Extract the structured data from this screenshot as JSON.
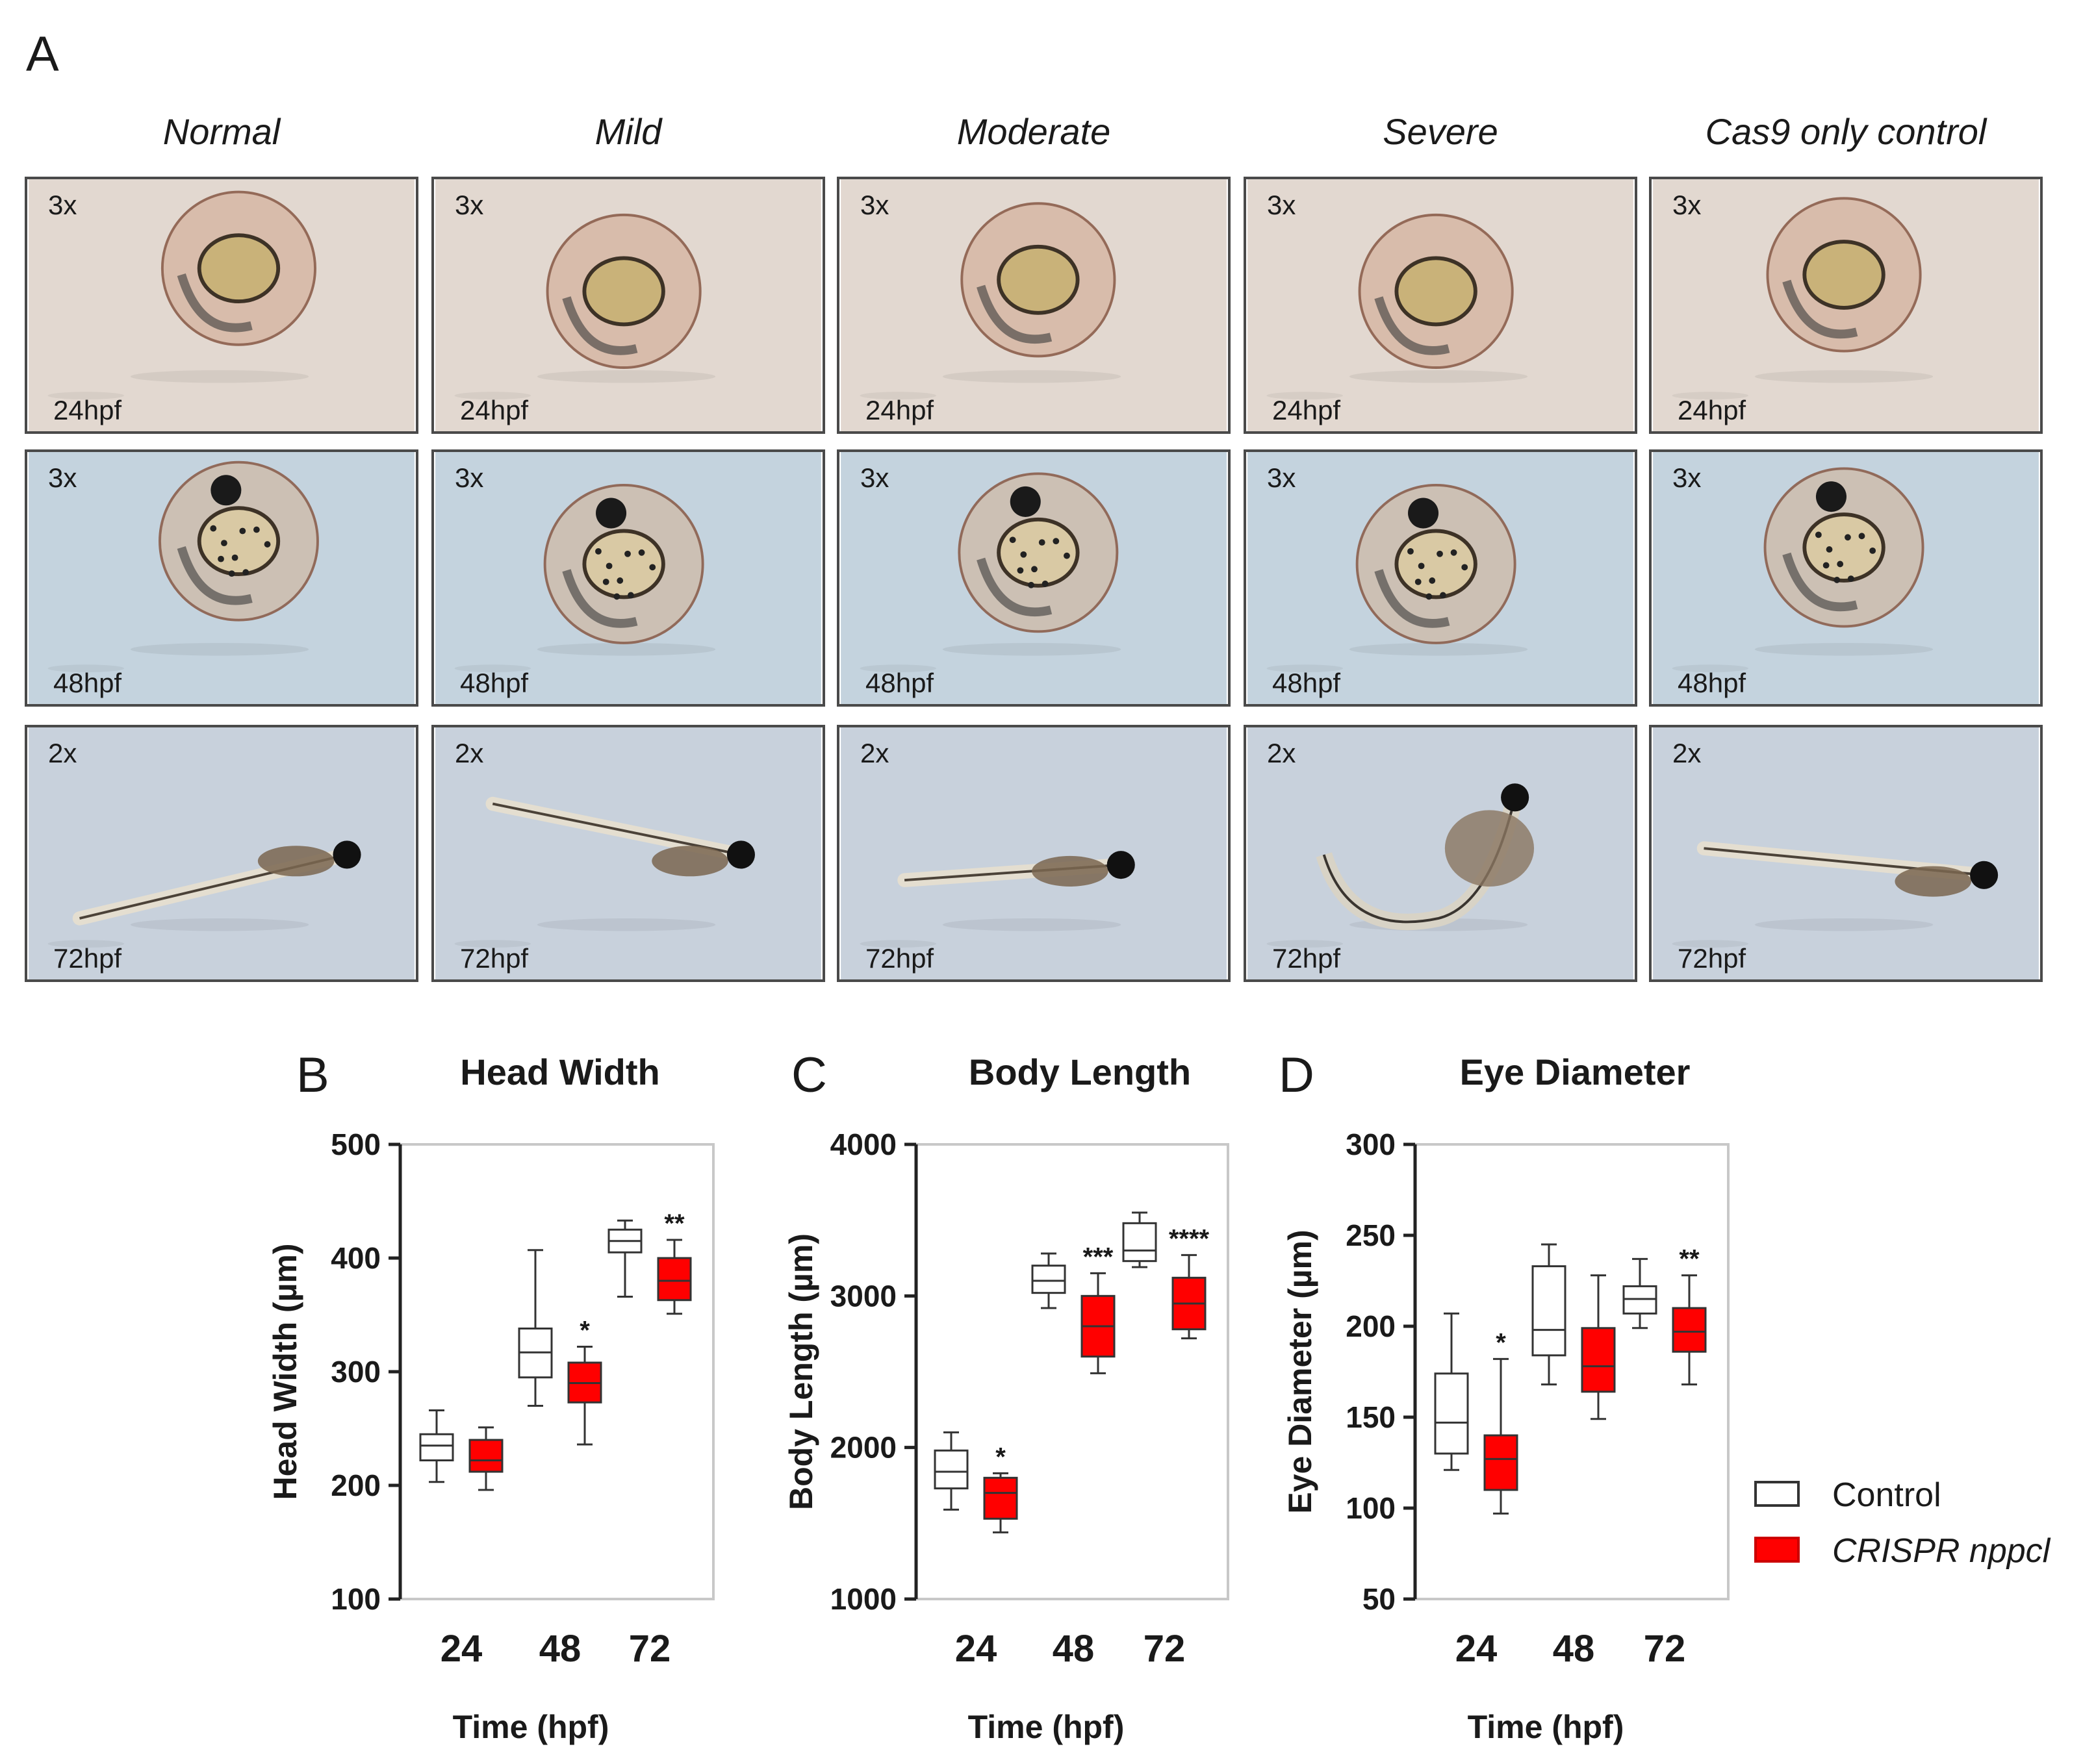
{
  "panel_letters": {
    "a": "A",
    "b": "B",
    "c": "C",
    "d": "D"
  },
  "columns": [
    "Normal",
    "Mild",
    "Moderate",
    "Severe",
    "Cas9 only control"
  ],
  "rows": [
    {
      "magnification": "3x",
      "stage": "24hpf",
      "tint": "#e2d8d0",
      "kind": "egg24"
    },
    {
      "magnification": "3x",
      "stage": "48hpf",
      "tint": "#c4d3de",
      "kind": "egg48"
    },
    {
      "magnification": "2x",
      "stage": "72hpf",
      "tint": "#c8d1dc",
      "kind": "larva"
    }
  ],
  "legend": {
    "control": "Control",
    "crispr": "CRISPR nppcl",
    "control_color": "#ffffff",
    "crispr_color": "#ff0000"
  },
  "chart_data": [
    {
      "type": "box",
      "title": "Head Width",
      "ylabel": "Head Width (µm)",
      "xlabel": "Time (hpf)",
      "categories": [
        "24",
        "48",
        "72"
      ],
      "ylim": [
        100,
        500
      ],
      "yticks": [
        100,
        200,
        300,
        400,
        500
      ],
      "series": [
        {
          "name": "Control",
          "boxes": [
            {
              "min": 203,
              "q1": 222,
              "median": 235,
              "q3": 245,
              "max": 266
            },
            {
              "min": 270,
              "q1": 295,
              "median": 317,
              "q3": 338,
              "max": 407
            },
            {
              "min": 366,
              "q1": 405,
              "median": 415,
              "q3": 425,
              "max": 433
            }
          ]
        },
        {
          "name": "CRISPR nppcl",
          "boxes": [
            {
              "min": 196,
              "q1": 212,
              "median": 222,
              "q3": 240,
              "max": 251
            },
            {
              "min": 236,
              "q1": 273,
              "median": 290,
              "q3": 308,
              "max": 322
            },
            {
              "min": 351,
              "q1": 363,
              "median": 380,
              "q3": 400,
              "max": 416
            }
          ]
        }
      ],
      "annotations": [
        {
          "category": "48",
          "text": "*"
        },
        {
          "category": "72",
          "text": "**"
        }
      ]
    },
    {
      "type": "box",
      "title": "Body Length",
      "ylabel": "Body Length (µm)",
      "xlabel": "Time (hpf)",
      "categories": [
        "24",
        "48",
        "72"
      ],
      "ylim": [
        1000,
        4000
      ],
      "yticks": [
        1000,
        2000,
        3000,
        4000
      ],
      "series": [
        {
          "name": "Control",
          "boxes": [
            {
              "min": 1590,
              "q1": 1730,
              "median": 1840,
              "q3": 1980,
              "max": 2100
            },
            {
              "min": 2920,
              "q1": 3020,
              "median": 3100,
              "q3": 3200,
              "max": 3280
            },
            {
              "min": 3190,
              "q1": 3230,
              "median": 3300,
              "q3": 3480,
              "max": 3550
            }
          ]
        },
        {
          "name": "CRISPR nppcl",
          "boxes": [
            {
              "min": 1440,
              "q1": 1530,
              "median": 1700,
              "q3": 1800,
              "max": 1830
            },
            {
              "min": 2490,
              "q1": 2600,
              "median": 2800,
              "q3": 3000,
              "max": 3150
            },
            {
              "min": 2720,
              "q1": 2780,
              "median": 2950,
              "q3": 3120,
              "max": 3270
            }
          ]
        }
      ],
      "annotations": [
        {
          "category": "24",
          "text": "*"
        },
        {
          "category": "48",
          "text": "***"
        },
        {
          "category": "72",
          "text": "****"
        }
      ]
    },
    {
      "type": "box",
      "title": "Eye Diameter",
      "ylabel": "Eye Diameter (µm)",
      "xlabel": "Time (hpf)",
      "categories": [
        "24",
        "48",
        "72"
      ],
      "ylim": [
        50,
        300
      ],
      "yticks": [
        50,
        100,
        150,
        200,
        250,
        300
      ],
      "series": [
        {
          "name": "Control",
          "boxes": [
            {
              "min": 121,
              "q1": 130,
              "median": 147,
              "q3": 174,
              "max": 207
            },
            {
              "min": 168,
              "q1": 184,
              "median": 198,
              "q3": 233,
              "max": 245
            },
            {
              "min": 199,
              "q1": 207,
              "median": 215,
              "q3": 222,
              "max": 237
            }
          ]
        },
        {
          "name": "CRISPR nppcl",
          "boxes": [
            {
              "min": 97,
              "q1": 110,
              "median": 127,
              "q3": 140,
              "max": 182
            },
            {
              "min": 149,
              "q1": 164,
              "median": 178,
              "q3": 199,
              "max": 228
            },
            {
              "min": 168,
              "q1": 186,
              "median": 197,
              "q3": 210,
              "max": 228
            }
          ]
        }
      ],
      "annotations": [
        {
          "category": "24",
          "text": "*"
        },
        {
          "category": "72",
          "text": "**"
        }
      ]
    }
  ]
}
